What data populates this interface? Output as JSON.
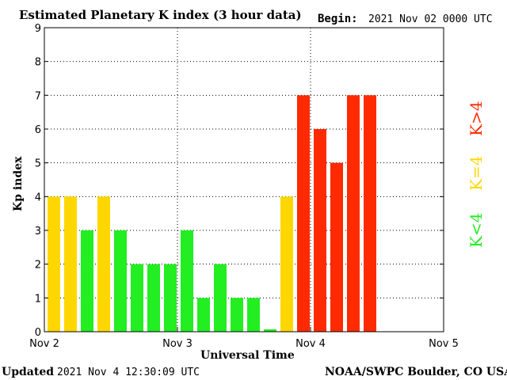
{
  "colors": {
    "low": "#22ee22",
    "mid": "#ffd700",
    "high": "#ff2a00",
    "axis": "#000000",
    "grid": "#000000"
  },
  "header": {
    "begin_label": "Begin:",
    "begin_value": "2021 Nov 02 0000 UTC"
  },
  "footer": {
    "updated_label": "Updated",
    "updated_value": "2021 Nov  4 12:30:09 UTC",
    "source": "NOAA/SWPC Boulder, CO USA"
  },
  "legend": {
    "low": "K<4",
    "mid": "K=4",
    "high": "K>4"
  },
  "chart_data": {
    "type": "bar",
    "title": "Estimated Planetary K index (3 hour data)",
    "xlabel": "Universal Time",
    "ylabel": "Kp index",
    "ylim": [
      0,
      9
    ],
    "yticks": [
      0,
      1,
      2,
      3,
      4,
      5,
      6,
      7,
      8,
      9
    ],
    "xticks": [
      "Nov 2",
      "Nov 3",
      "Nov 4",
      "Nov 5"
    ],
    "grid": true,
    "interval_hours": 3,
    "days_shown": 3,
    "values": [
      4,
      4,
      3,
      4,
      3,
      2,
      2,
      2,
      3,
      1,
      2,
      1,
      1,
      0.07,
      4,
      7,
      6,
      5,
      7,
      7
    ]
  }
}
